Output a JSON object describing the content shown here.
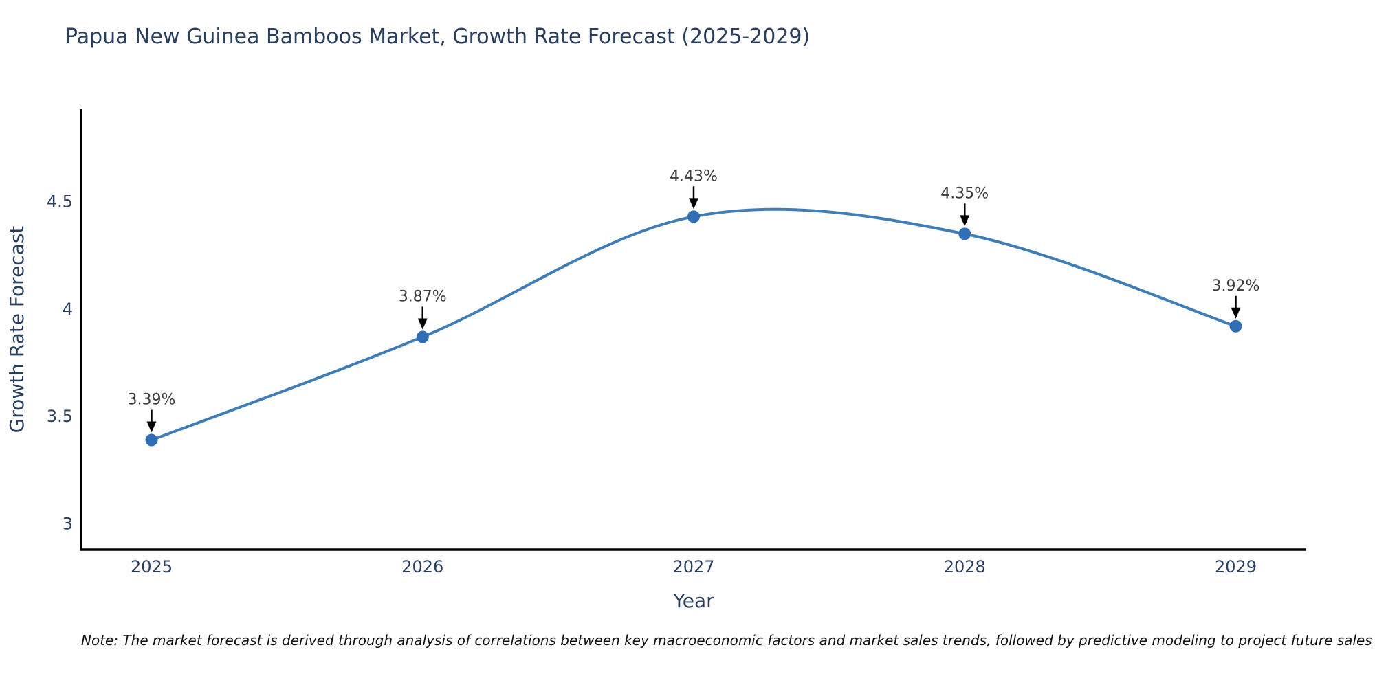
{
  "title": "Papua New Guinea Bamboos Market, Growth Rate Forecast (2025-2029)",
  "note": "Note: The market forecast is derived through analysis of correlations between key macroeconomic factors and market sales trends, followed by predictive modeling to project future sales",
  "chart_data": {
    "type": "line",
    "title": "Papua New Guinea Bamboos Market, Growth Rate Forecast (2025-2029)",
    "x": [
      2025,
      2026,
      2027,
      2028,
      2029
    ],
    "series": [
      {
        "name": "Growth Rate Forecast",
        "values": [
          3.39,
          3.87,
          4.43,
          4.35,
          3.92
        ]
      }
    ],
    "point_labels": [
      "3.39%",
      "3.87%",
      "4.43%",
      "4.35%",
      "3.92%"
    ],
    "xlabel": "Year",
    "ylabel": "Growth Rate Forecast",
    "xticks": [
      "2025",
      "2026",
      "2027",
      "2028",
      "2029"
    ],
    "yticks": [
      3,
      3.5,
      4,
      4.5
    ],
    "xlim": [
      2024.74,
      2029.26
    ],
    "ylim": [
      2.88,
      4.93
    ],
    "line_shape": "spline",
    "grid": false,
    "legend": "none",
    "colors": {
      "line": "#3f7db8",
      "marker": "#2f6db4",
      "arrow": "#000000",
      "axis": "#000000",
      "title_text": "#2a3f5f",
      "tick_text": "#2a3f5f",
      "annotation_text": "#3d3d3d"
    }
  }
}
